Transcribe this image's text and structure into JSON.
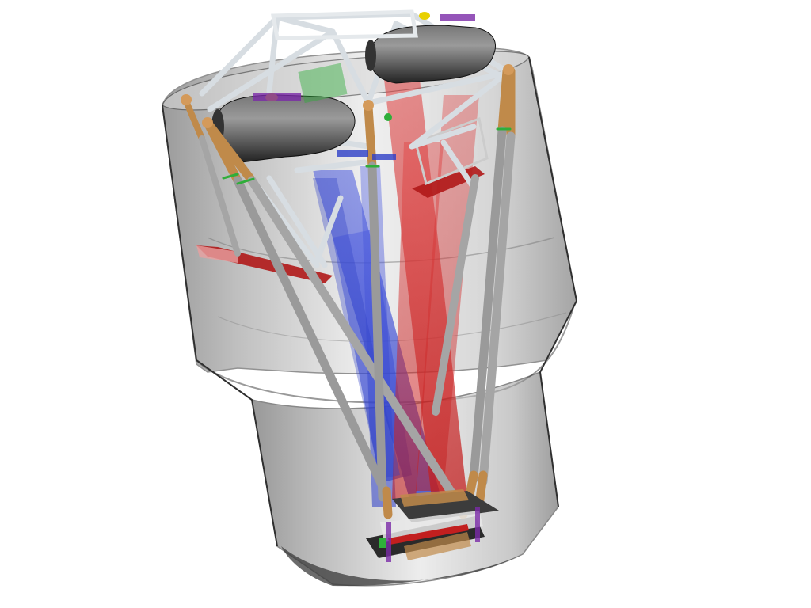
{
  "scene": {
    "colors": {
      "background": "#ffffff",
      "shell_dark": "#5a5a5a",
      "shell_mid": "#a9a9a9",
      "shell_light": "#e6e6e6",
      "strut_gray": "#9a9a9a",
      "strut_tan": "#c08a4a",
      "truss_white": "#e8ecef",
      "beam_red": "#c21f1f",
      "beam_blue": "#2d3ec7",
      "mirror_red": "#b01818",
      "detector_dark": "#2a2a2a",
      "accent_green": "#2fae3a",
      "accent_yellow": "#e8d000",
      "accent_purple": "#7a2aa8"
    },
    "icons": [
      "baffle-shell",
      "hexapod-strut",
      "optical-truss",
      "light-beam",
      "mirror-plate",
      "tank",
      "detector-assembly"
    ]
  }
}
